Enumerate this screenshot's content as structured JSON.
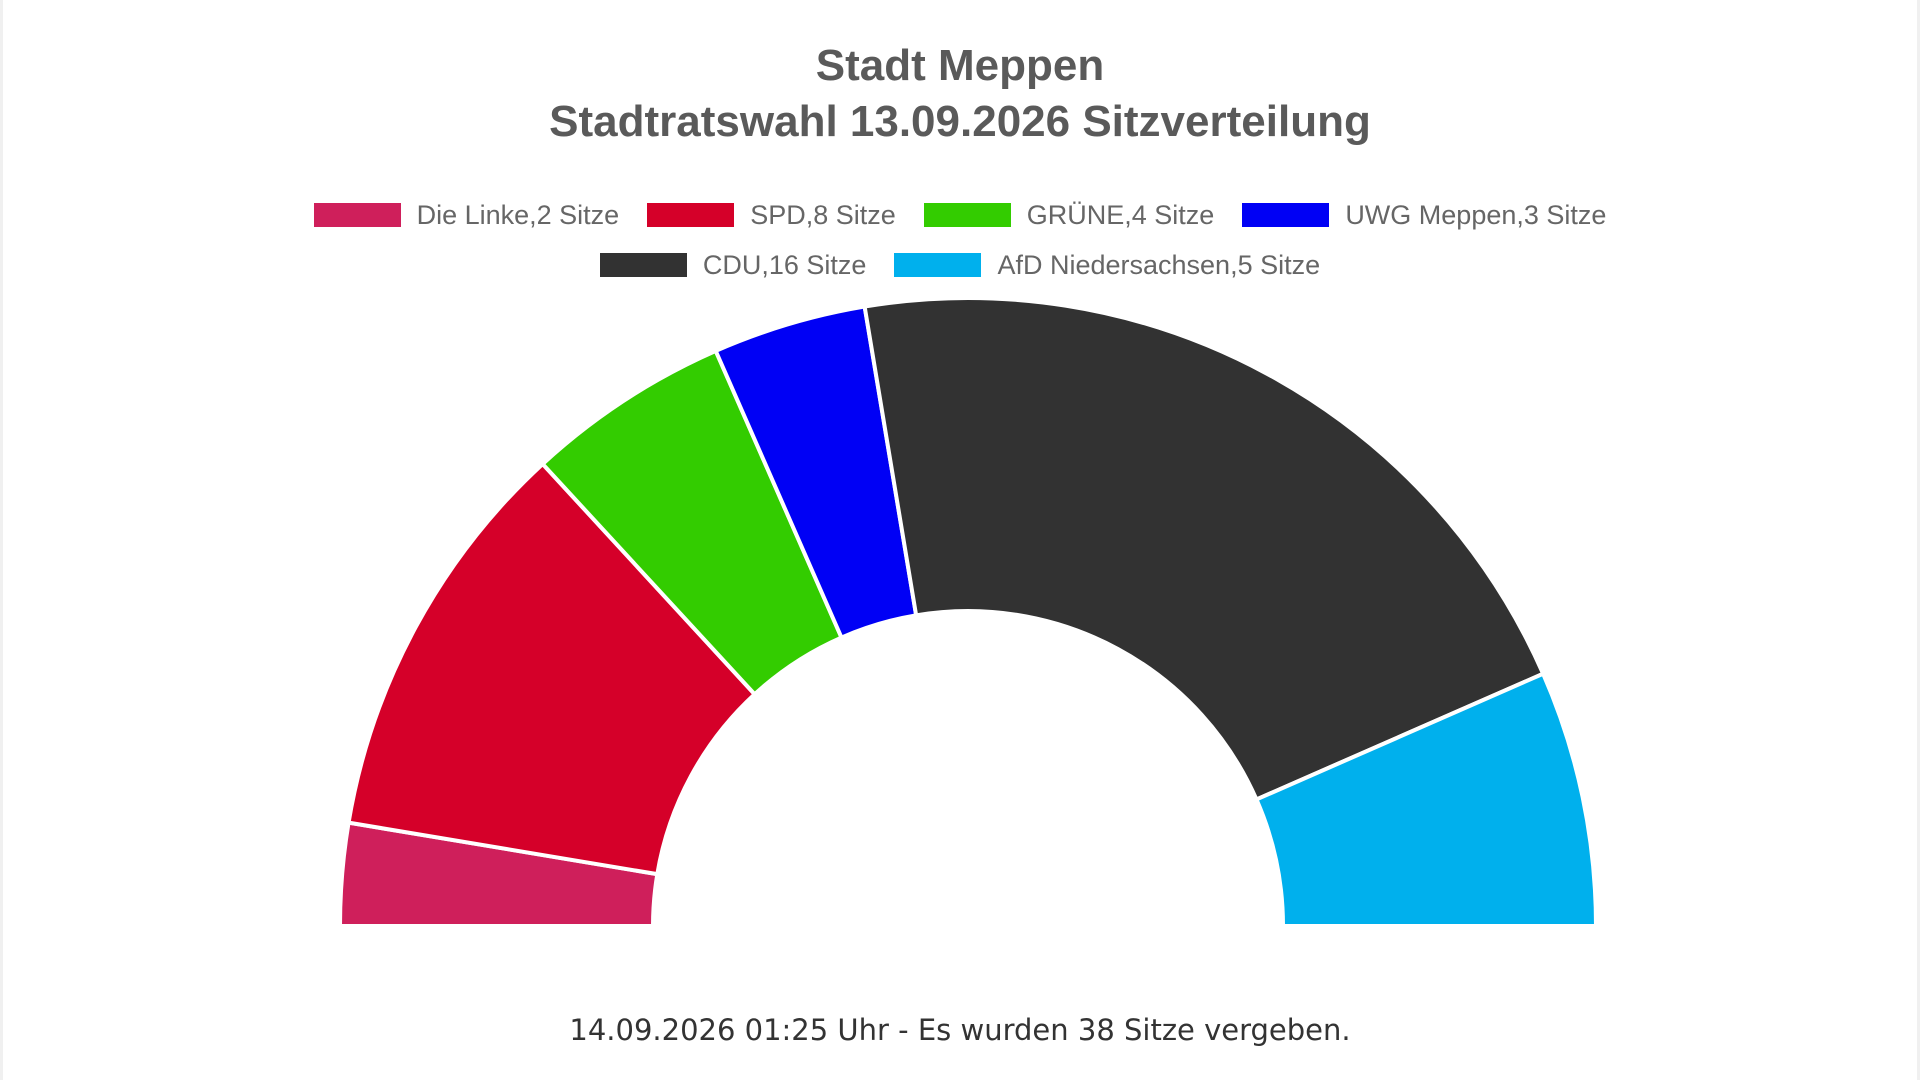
{
  "chart_data": {
    "type": "pie",
    "variant": "semicircle-parliament",
    "title": [
      "Stadt Meppen",
      "Stadtratswahl 13.09.2026 Sitzverteilung"
    ],
    "series": [
      {
        "name": "Die Linke",
        "legend": "Die Linke,2 Sitze",
        "seats": 2,
        "color": "#cf1f5b"
      },
      {
        "name": "SPD",
        "legend": "SPD,8 Sitze",
        "seats": 8,
        "color": "#d50029"
      },
      {
        "name": "GRÜNE",
        "legend": "GRÜNE,4 Sitze",
        "seats": 4,
        "color": "#33cc00"
      },
      {
        "name": "UWG Meppen",
        "legend": "UWG Meppen,3 Sitze",
        "seats": 3,
        "color": "#0000f5"
      },
      {
        "name": "CDU",
        "legend": "CDU,16 Sitze",
        "seats": 16,
        "color": "#323232"
      },
      {
        "name": "AfD Niedersachsen",
        "legend": "AfD Niedersachsen,5 Sitze",
        "seats": 5,
        "color": "#00b0ed"
      }
    ],
    "legend_rows": [
      [
        0,
        1,
        2,
        3
      ],
      [
        4,
        5
      ]
    ],
    "legend_position": "top-center",
    "total_seats": 38
  },
  "footer": {
    "note": "14.09.2026 01:25 Uhr - Es wurden 38 Sitze vergeben."
  }
}
